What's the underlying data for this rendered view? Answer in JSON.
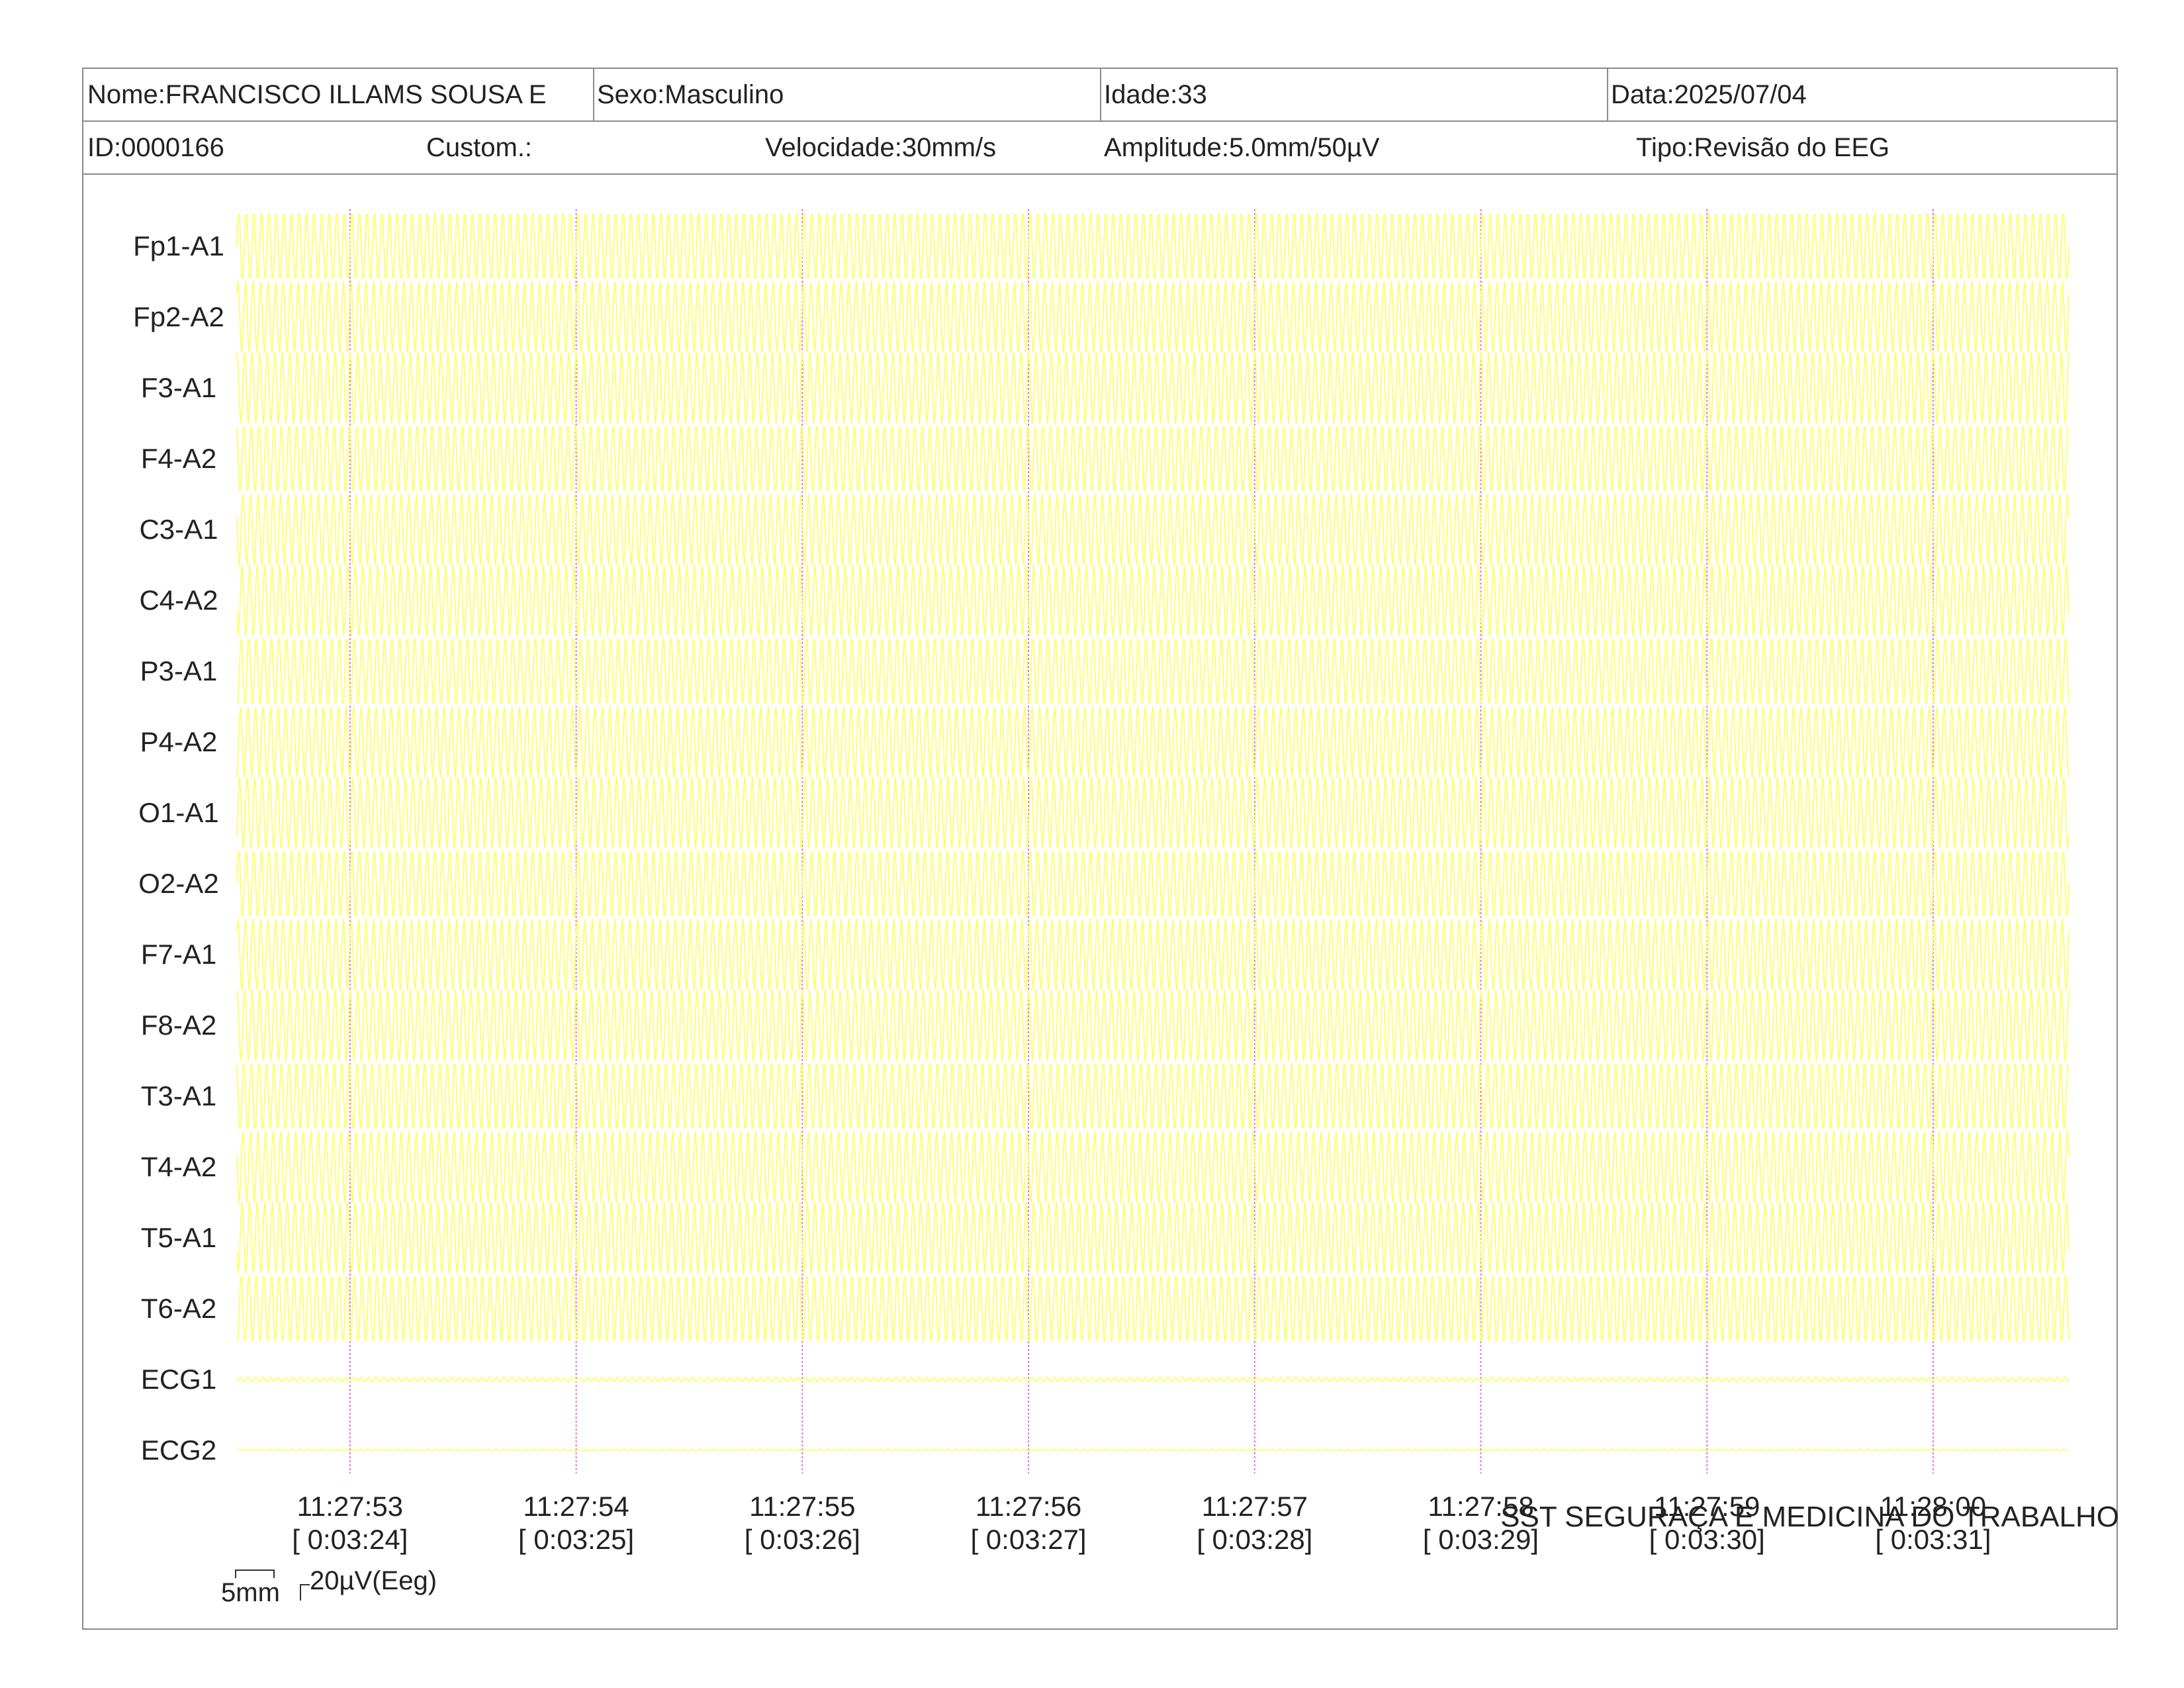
{
  "header": {
    "name": "Nome:FRANCISCO ILLAMS SOUSA E",
    "sex": "Sexo:Masculino",
    "age": "Idade:33",
    "date": "Data:2025/07/04",
    "id": "ID:0000166",
    "custom": "Custom.:",
    "speed": "Velocidade:30mm/s",
    "amplitude": "Amplitude:5.0mm/50µV",
    "type": "Tipo:Revisão do EEG"
  },
  "footer": {
    "company": "SST SEGURAÇA E MEDICINA DO TRABALHO",
    "scale_time": "5mm",
    "scale_amplitude": "20µV(Eeg)"
  },
  "colors": {
    "trace": "#ffff55",
    "time_marker": "#e070e0",
    "border": "#8a8a8a"
  },
  "chart_data": {
    "type": "line",
    "title": "",
    "xlabel": "",
    "ylabel": "",
    "grid": false,
    "x_range_seconds": [
      -0.5,
      7.6
    ],
    "channels": [
      "Fp1-A1",
      "Fp2-A2",
      "F3-A1",
      "F4-A2",
      "C3-A1",
      "C4-A2",
      "P3-A1",
      "P4-A2",
      "O1-A1",
      "O2-A2",
      "F7-A1",
      "F8-A2",
      "T3-A1",
      "T4-A2",
      "T5-A1",
      "T6-A2",
      "ECG1",
      "ECG2"
    ],
    "time_markers": [
      {
        "clock": "11:27:53",
        "elapsed": "[ 0:03:24]"
      },
      {
        "clock": "11:27:54",
        "elapsed": "[ 0:03:25]"
      },
      {
        "clock": "11:27:55",
        "elapsed": "[ 0:03:26]"
      },
      {
        "clock": "11:27:56",
        "elapsed": "[ 0:03:27]"
      },
      {
        "clock": "11:27:57",
        "elapsed": "[ 0:03:28]"
      },
      {
        "clock": "11:27:58",
        "elapsed": "[ 0:03:29]"
      },
      {
        "clock": "11:27:59",
        "elapsed": "[ 0:03:30]"
      },
      {
        "clock": "11:28:00",
        "elapsed": "[ 0:03:31]"
      }
    ],
    "series": [
      {
        "channel": "Fp1-A1",
        "signal": "sinusoid",
        "cycles_per_second": 30,
        "amplitude_uV": 50
      },
      {
        "channel": "Fp2-A2",
        "signal": "sinusoid",
        "cycles_per_second": 30,
        "amplitude_uV": 50
      },
      {
        "channel": "F3-A1",
        "signal": "sinusoid",
        "cycles_per_second": 30,
        "amplitude_uV": 50
      },
      {
        "channel": "F4-A2",
        "signal": "sinusoid",
        "cycles_per_second": 30,
        "amplitude_uV": 50
      },
      {
        "channel": "C3-A1",
        "signal": "sinusoid",
        "cycles_per_second": 30,
        "amplitude_uV": 50
      },
      {
        "channel": "C4-A2",
        "signal": "sinusoid",
        "cycles_per_second": 30,
        "amplitude_uV": 50
      },
      {
        "channel": "P3-A1",
        "signal": "sinusoid",
        "cycles_per_second": 30,
        "amplitude_uV": 50
      },
      {
        "channel": "P4-A2",
        "signal": "sinusoid",
        "cycles_per_second": 30,
        "amplitude_uV": 50
      },
      {
        "channel": "O1-A1",
        "signal": "sinusoid",
        "cycles_per_second": 30,
        "amplitude_uV": 50
      },
      {
        "channel": "O2-A2",
        "signal": "sinusoid",
        "cycles_per_second": 30,
        "amplitude_uV": 50
      },
      {
        "channel": "F7-A1",
        "signal": "sinusoid",
        "cycles_per_second": 30,
        "amplitude_uV": 50
      },
      {
        "channel": "F8-A2",
        "signal": "sinusoid",
        "cycles_per_second": 30,
        "amplitude_uV": 50
      },
      {
        "channel": "T3-A1",
        "signal": "sinusoid",
        "cycles_per_second": 30,
        "amplitude_uV": 50
      },
      {
        "channel": "T4-A2",
        "signal": "sinusoid",
        "cycles_per_second": 30,
        "amplitude_uV": 50
      },
      {
        "channel": "T5-A1",
        "signal": "sinusoid",
        "cycles_per_second": 30,
        "amplitude_uV": 50
      },
      {
        "channel": "T6-A2",
        "signal": "sinusoid",
        "cycles_per_second": 30,
        "amplitude_uV": 50
      },
      {
        "channel": "ECG1",
        "signal": "sinusoid",
        "cycles_per_second": 30,
        "amplitude_uV": 3
      },
      {
        "channel": "ECG2",
        "signal": "sinusoid",
        "cycles_per_second": 30,
        "amplitude_uV": 1
      }
    ]
  }
}
